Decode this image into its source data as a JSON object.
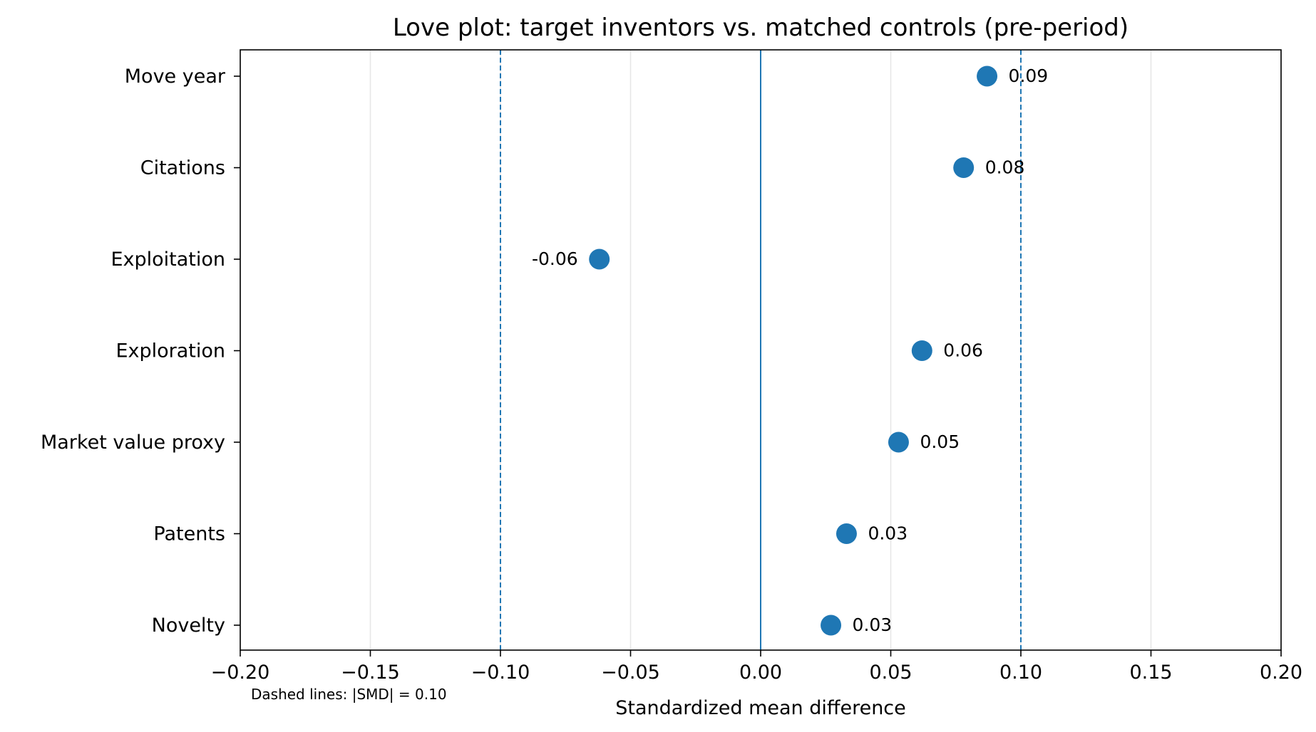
{
  "chart_data": {
    "type": "scatter",
    "title": "Love plot: target inventors vs. matched controls (pre-period)",
    "xlabel": "Standardized mean difference",
    "ylabel": "",
    "xlim": [
      -0.2,
      0.2
    ],
    "x_ticks": [
      -0.2,
      -0.15,
      -0.1,
      -0.05,
      0.0,
      0.05,
      0.1,
      0.15,
      0.2
    ],
    "x_tick_labels": [
      "−0.20",
      "−0.15",
      "−0.10",
      "−0.05",
      "0.00",
      "0.05",
      "0.10",
      "0.15",
      "0.20"
    ],
    "categories": [
      "Move year",
      "Citations",
      "Exploitation",
      "Exploration",
      "Market value proxy",
      "Patents",
      "Novelty"
    ],
    "values": [
      0.087,
      0.078,
      -0.062,
      0.062,
      0.053,
      0.033,
      0.027
    ],
    "value_labels": [
      "0.09",
      "0.08",
      "-0.06",
      "0.06",
      "0.05",
      "0.03",
      "0.03"
    ],
    "reference_lines": {
      "zero": 0.0,
      "threshold_dashed": [
        -0.1,
        0.1
      ]
    },
    "grid": "vertical",
    "note": "Dashed lines: |SMD| = 0.10",
    "colors": {
      "marker": "#1f77b4",
      "reference_line": "#1f77b4",
      "grid": "#e6e6e6",
      "axes": "#000000"
    }
  }
}
